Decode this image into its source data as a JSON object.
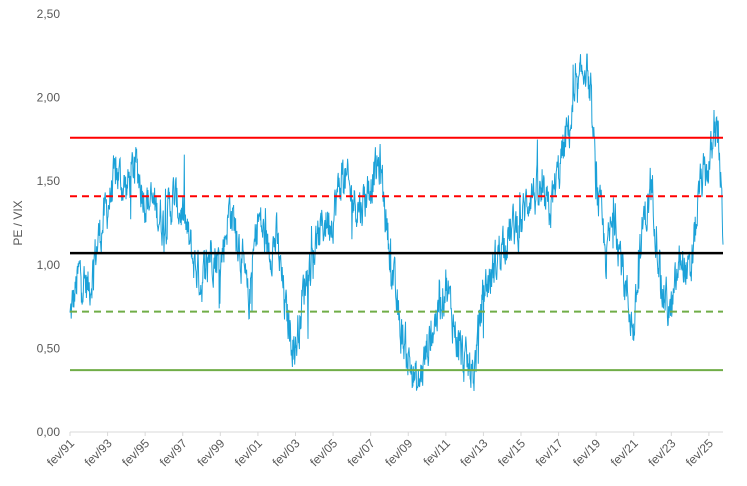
{
  "chart_data": {
    "type": "line",
    "title": "",
    "xlabel": "",
    "ylabel": "PE / VIX",
    "ylim": [
      0,
      2.5
    ],
    "yticks": [
      "0,00",
      "0,50",
      "1,00",
      "1,50",
      "2,00",
      "2,50"
    ],
    "xlim": [
      "1991-02",
      "2025-11"
    ],
    "xticks": [
      "fev/91",
      "fev/93",
      "fev/95",
      "fev/97",
      "fev/99",
      "fev/01",
      "fev/03",
      "fev/05",
      "fev/07",
      "fev/09",
      "fev/11",
      "fev/13",
      "fev/15",
      "fev/17",
      "fev/19",
      "fev/21",
      "fev/23",
      "fev/25"
    ],
    "grid": false,
    "legend": "none",
    "reference_lines": [
      {
        "value": 1.76,
        "color": "#ff0000",
        "style": "solid"
      },
      {
        "value": 1.41,
        "color": "#ff0000",
        "style": "dashed"
      },
      {
        "value": 1.07,
        "color": "#000000",
        "style": "solid"
      },
      {
        "value": 0.72,
        "color": "#70ad47",
        "style": "dashed"
      },
      {
        "value": 0.37,
        "color": "#70ad47",
        "style": "solid"
      }
    ],
    "series": [
      {
        "color": "#1ba1d8",
        "x": [
          "1991-02",
          "1991-08",
          "1992-02",
          "1992-08",
          "1993-02",
          "1993-08",
          "1994-02",
          "1994-08",
          "1995-02",
          "1995-08",
          "1996-02",
          "1996-08",
          "1997-02",
          "1997-08",
          "1998-02",
          "1998-08",
          "1999-02",
          "1999-08",
          "2000-02",
          "2000-08",
          "2001-02",
          "2001-08",
          "2002-02",
          "2002-08",
          "2003-02",
          "2003-08",
          "2004-02",
          "2004-08",
          "2005-02",
          "2005-08",
          "2006-02",
          "2006-08",
          "2007-02",
          "2007-08",
          "2008-02",
          "2008-08",
          "2009-02",
          "2009-08",
          "2010-02",
          "2010-08",
          "2011-02",
          "2011-08",
          "2012-02",
          "2012-08",
          "2013-02",
          "2013-08",
          "2014-02",
          "2014-08",
          "2015-02",
          "2015-08",
          "2016-02",
          "2016-08",
          "2017-02",
          "2017-08",
          "2018-02",
          "2018-08",
          "2019-02",
          "2019-08",
          "2020-02",
          "2020-08",
          "2021-02",
          "2021-08",
          "2022-02",
          "2022-08",
          "2023-02",
          "2023-08",
          "2024-02",
          "2024-08",
          "2025-02",
          "2025-08",
          "2025-11"
        ],
        "values": [
          0.68,
          0.95,
          0.85,
          1.15,
          1.35,
          1.55,
          1.45,
          1.6,
          1.4,
          1.35,
          1.25,
          1.4,
          1.3,
          1.05,
          0.9,
          1.1,
          1.0,
          1.35,
          1.15,
          0.75,
          1.3,
          1.1,
          1.15,
          0.7,
          0.5,
          0.9,
          1.1,
          1.25,
          1.3,
          1.55,
          1.4,
          1.35,
          1.5,
          1.6,
          1.1,
          0.65,
          0.45,
          0.25,
          0.5,
          0.7,
          0.9,
          0.6,
          0.4,
          0.35,
          0.85,
          0.95,
          1.15,
          1.2,
          1.25,
          1.45,
          1.4,
          1.3,
          1.55,
          1.8,
          2.0,
          2.25,
          1.5,
          1.05,
          1.3,
          0.9,
          0.6,
          1.25,
          1.45,
          0.85,
          0.7,
          1.05,
          0.9,
          1.45,
          1.6,
          1.8,
          1.2
        ]
      }
    ]
  }
}
